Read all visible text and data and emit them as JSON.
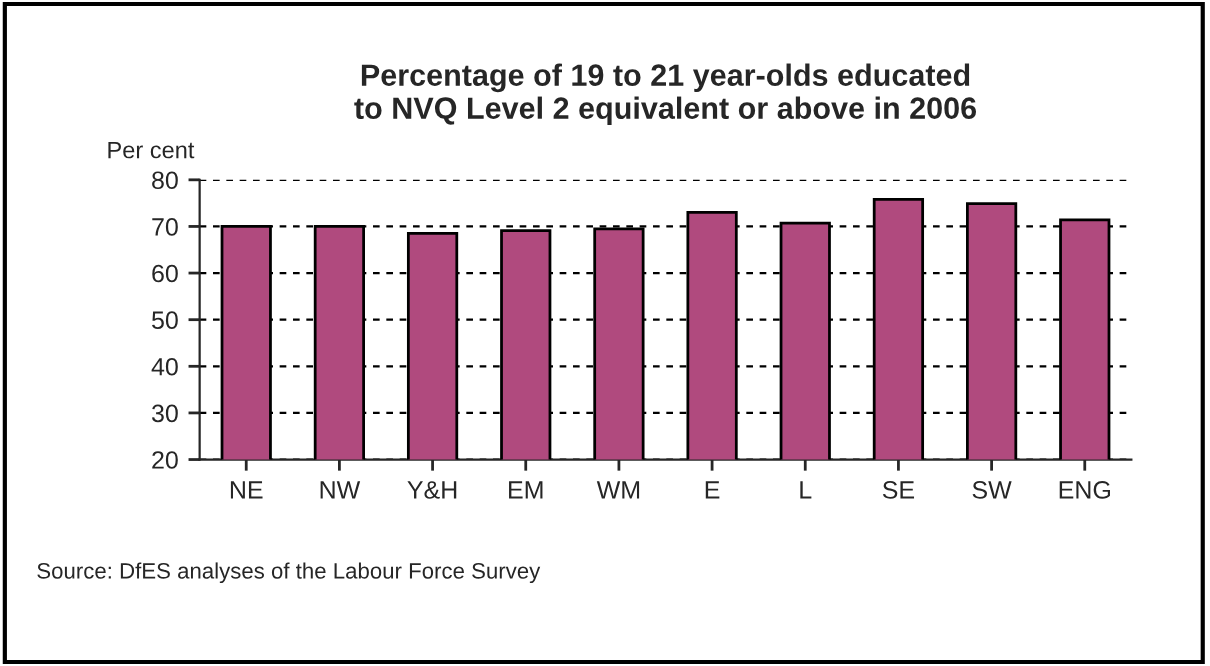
{
  "chart_data": {
    "type": "bar",
    "title": "Percentage of 19 to 21 year-olds educated\nto NVQ Level 2 equivalent or above in 2006",
    "ylabel": "Per cent",
    "categories": [
      "NE",
      "NW",
      "Y&H",
      "EM",
      "WM",
      "E",
      "L",
      "SE",
      "SW",
      "ENG"
    ],
    "values": [
      70.0,
      70.0,
      68.5,
      69.1,
      69.5,
      73.0,
      70.7,
      75.8,
      74.9,
      71.4
    ],
    "color": "#b04a7e",
    "ylim": [
      20,
      80
    ],
    "yticks": [
      20,
      30,
      40,
      50,
      60,
      70,
      80
    ],
    "grid": "y",
    "annotations": [
      "Source: DfES analyses of the Labour Force Survey"
    ]
  }
}
